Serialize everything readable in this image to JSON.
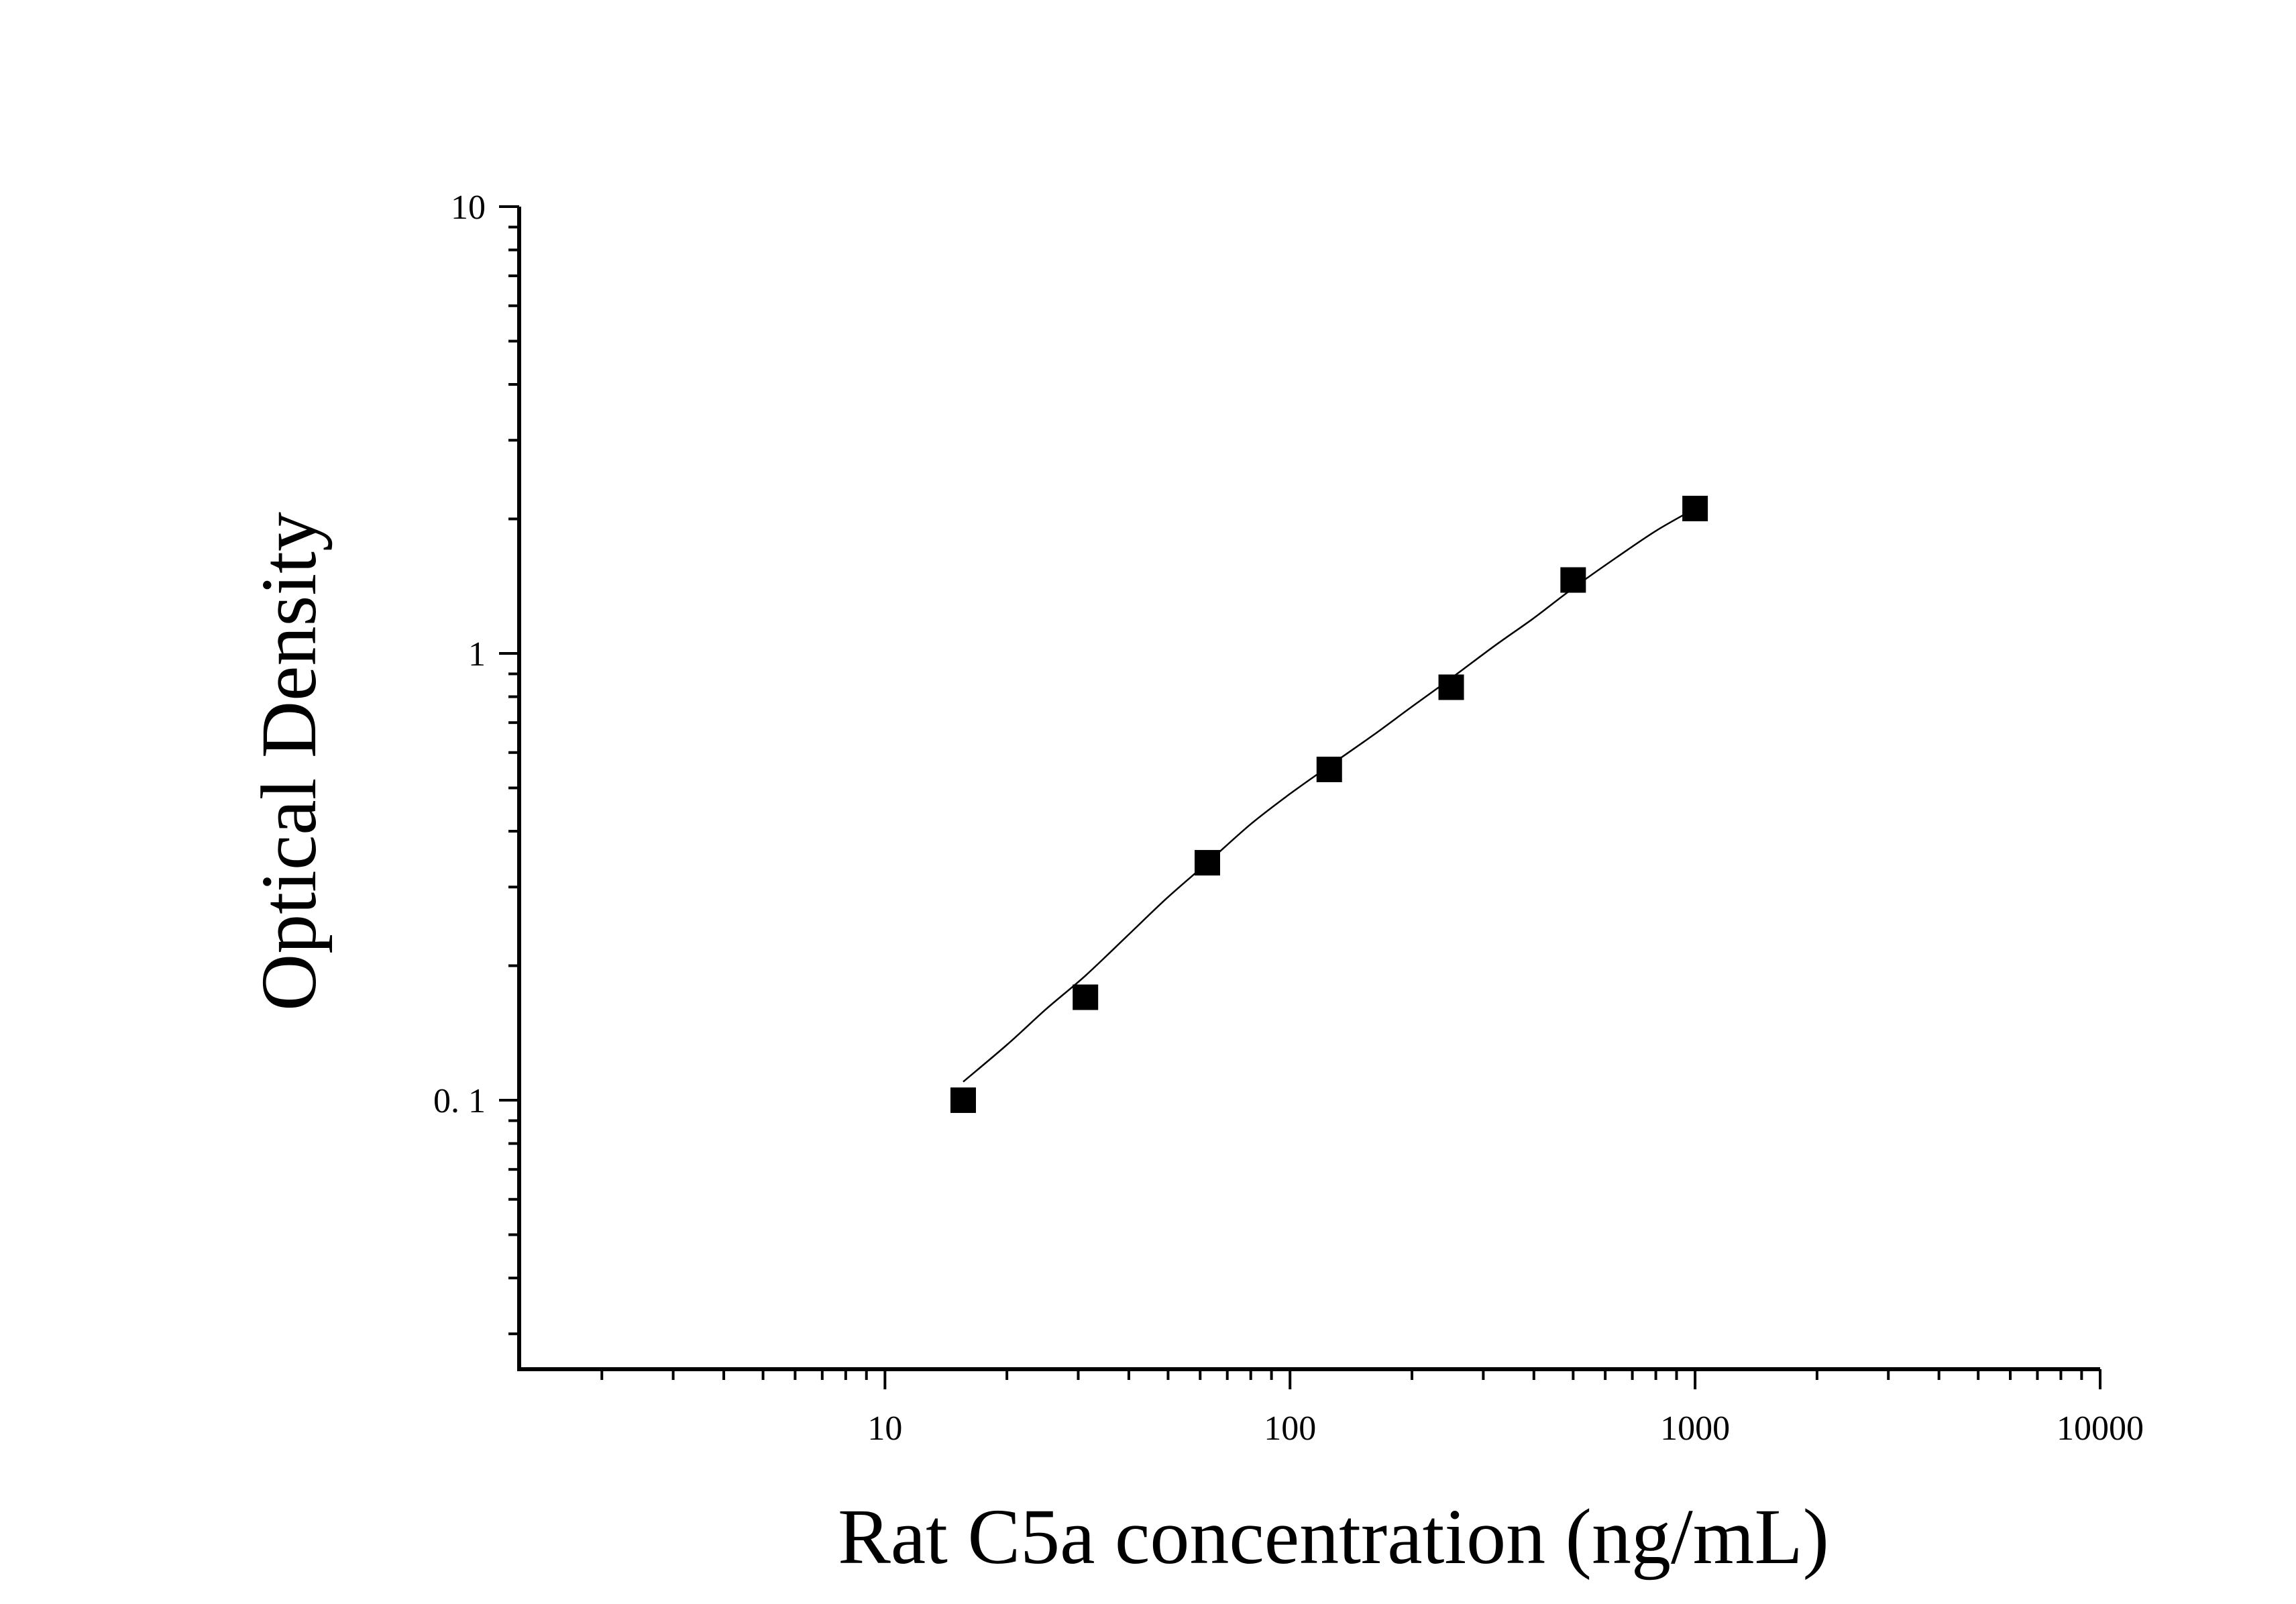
{
  "chart_data": {
    "type": "scatter",
    "xlabel": "Rat C5a concentration (ng/mL)",
    "ylabel": "Optical Density",
    "x_scale": "log",
    "y_scale": "log",
    "xlim": [
      1.25,
      10000
    ],
    "ylim": [
      0.025,
      10
    ],
    "x_ticks": [
      10,
      100,
      1000,
      10000
    ],
    "x_tick_labels": [
      "10",
      "100",
      "1000",
      "10000"
    ],
    "y_ticks": [
      0.1,
      1,
      10
    ],
    "y_tick_labels": [
      "0. 1",
      "1",
      "10"
    ],
    "grid": false,
    "legend": "none",
    "series": [
      {
        "marker": "square",
        "color": "#000000",
        "x": [
          15.6,
          31.25,
          62.5,
          125,
          250,
          500,
          1000
        ],
        "y": [
          0.1,
          0.17,
          0.34,
          0.55,
          0.84,
          1.46,
          2.11
        ]
      }
    ],
    "fit_curve": {
      "color": "#000000",
      "x": [
        15.6,
        20,
        25,
        31.25,
        40,
        50,
        62.5,
        80,
        100,
        125,
        160,
        200,
        250,
        320,
        400,
        500,
        640,
        800,
        1000
      ],
      "y": [
        0.11,
        0.133,
        0.16,
        0.19,
        0.235,
        0.285,
        0.34,
        0.415,
        0.485,
        0.56,
        0.655,
        0.76,
        0.88,
        1.04,
        1.2,
        1.4,
        1.64,
        1.88,
        2.11
      ]
    }
  }
}
